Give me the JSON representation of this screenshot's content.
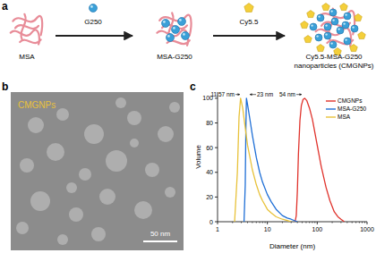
{
  "panel_a": {
    "label": "a",
    "nodes": [
      {
        "lines": [
          "MSA"
        ]
      },
      {
        "lines": [
          "MSA-G250"
        ]
      },
      {
        "lines": [
          "Cy5.5-MSA-G250",
          "nanoparticles (CMGNPs)"
        ]
      }
    ],
    "arrows": [
      {
        "label": "G250"
      },
      {
        "label": "Cy5.5"
      }
    ]
  },
  "panel_b": {
    "label": "b",
    "caption": "CMGNPs",
    "scale_bar": "50 nm"
  },
  "panel_c": {
    "label": "c"
  },
  "chart_data": {
    "type": "line",
    "log": "x",
    "legend": "upper right",
    "x_label": "Diameter (nm)",
    "y_label": "Volume",
    "xlim": [
      1,
      1000
    ],
    "xticks": [
      1,
      10,
      100,
      1000
    ],
    "ylim": [
      0,
      105
    ],
    "yticks": [
      0,
      20,
      40,
      60,
      80,
      100
    ],
    "annotations": [
      "11.57 nm",
      "23 nm",
      "54 nm"
    ],
    "series": [
      {
        "name": "CMGNPs",
        "color": "#e0332c",
        "x": [
          36,
          38,
          40,
          42,
          45,
          48,
          52,
          56,
          62,
          70,
          80,
          100,
          120,
          150,
          180,
          220,
          260,
          300,
          350
        ],
        "values": [
          0,
          5,
          25,
          55,
          82,
          94,
          99,
          100,
          98,
          92,
          83,
          62,
          45,
          28,
          17,
          8,
          4,
          2,
          0
        ]
      },
      {
        "name": "MSA-G250",
        "color": "#1f6fd6",
        "x": [
          3.4,
          3.6,
          3.7,
          3.8,
          4,
          4.5,
          5,
          6,
          7,
          8,
          10,
          12,
          15,
          20,
          25,
          30,
          40
        ],
        "values": [
          0,
          30,
          75,
          100,
          95,
          82,
          70,
          52,
          40,
          32,
          22,
          16,
          10,
          5,
          3,
          2,
          0
        ]
      },
      {
        "name": "MSA",
        "color": "#e8c23a",
        "x": [
          2.2,
          2.5,
          2.7,
          2.9,
          3.2,
          3.6,
          4,
          5,
          6,
          7,
          8,
          10,
          12,
          15,
          20,
          25,
          30
        ],
        "values": [
          0,
          40,
          85,
          100,
          92,
          76,
          62,
          42,
          30,
          22,
          17,
          10,
          7,
          4,
          2,
          1,
          0
        ]
      }
    ]
  }
}
